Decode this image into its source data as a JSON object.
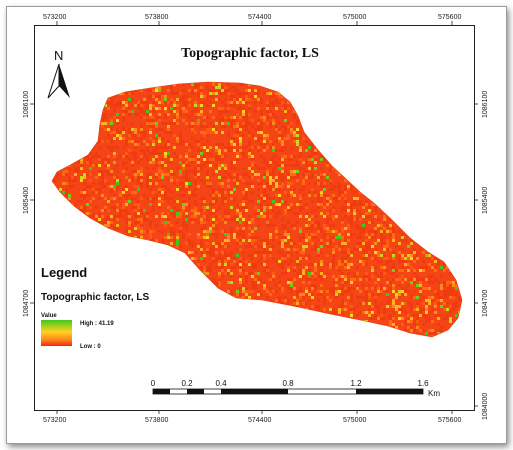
{
  "map": {
    "title": "Topographic factor, LS",
    "north_label": "N",
    "x_ticks_top": [
      "573200",
      "573800",
      "574400",
      "575000",
      "575600"
    ],
    "x_ticks_bottom": [
      "573200",
      "573800",
      "574400",
      "575000",
      "575600"
    ],
    "y_ticks_left": [
      "1086100",
      "1085400",
      "1084700"
    ],
    "y_ticks_right": [
      "1086100",
      "1085400",
      "1084700",
      "1084000"
    ],
    "colors": {
      "low": "#f03a10",
      "mid": "#ffa21e",
      "high": "#3fc91e",
      "dominant": "#f54516"
    }
  },
  "legend": {
    "heading": "Legend",
    "layer_name": "Topographic factor, LS",
    "value_label": "Value",
    "high_label": "High : 41.19",
    "low_label": "Low : 0",
    "high_value": 41.19,
    "low_value": 0
  },
  "scale_bar": {
    "labels": [
      "0",
      "0.2",
      "0.4",
      "0.8",
      "1.2",
      "1.6"
    ],
    "unit": "Km"
  }
}
